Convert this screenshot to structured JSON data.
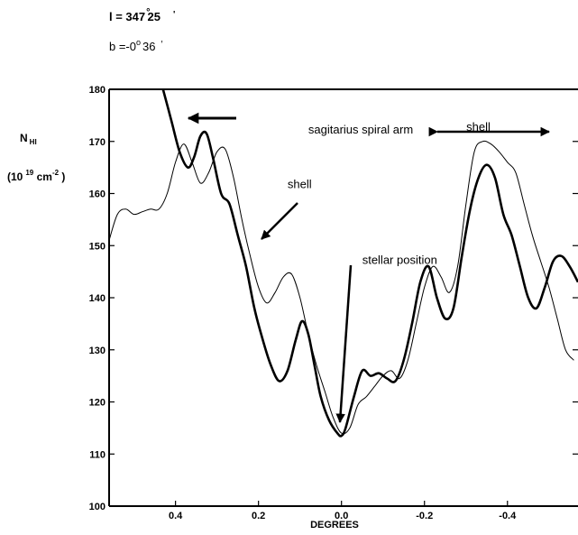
{
  "header": {
    "l_text": "l = 347",
    "l_degree": "°",
    "l_minutes": "25",
    "l_prime": "'",
    "b_text": "b =-0",
    "b_degree": "o",
    "b_minutes": "36",
    "b_prime": "′"
  },
  "chart_data": {
    "type": "line",
    "title": "",
    "xlabel": "DEGREES",
    "ylabel": "N",
    "ylabel_sub": "HI",
    "ylabel_unit_open": "(10",
    "ylabel_unit_exp": "19",
    "ylabel_unit_mid": " cm",
    "ylabel_unit_exp2": "-2",
    "ylabel_unit_close": " )",
    "xlim": [
      0.56,
      -0.57
    ],
    "ylim": [
      100,
      180
    ],
    "x_reversed": true,
    "grid": false,
    "x_ticks": [
      0.4,
      0.2,
      0.0,
      -0.2,
      -0.4
    ],
    "x_tick_labels": [
      "0.4",
      "0.2",
      "0.0",
      "-0.2",
      "-0.4"
    ],
    "y_ticks": [
      100,
      110,
      120,
      130,
      140,
      150,
      160,
      170,
      180
    ],
    "y_tick_labels": [
      "100",
      "110",
      "120",
      "130",
      "140",
      "150",
      "160",
      "170",
      "180"
    ],
    "series": [
      {
        "style": "thick",
        "x": [
          0.43,
          0.41,
          0.39,
          0.37,
          0.355,
          0.34,
          0.325,
          0.31,
          0.29,
          0.27,
          0.25,
          0.23,
          0.21,
          0.19,
          0.17,
          0.15,
          0.13,
          0.11,
          0.095,
          0.08,
          0.065,
          0.05,
          0.03,
          0.01,
          0.0,
          -0.01,
          -0.03,
          -0.05,
          -0.07,
          -0.09,
          -0.11,
          -0.13,
          -0.15,
          -0.17,
          -0.19,
          -0.21,
          -0.23,
          -0.25,
          -0.27,
          -0.29,
          -0.31,
          -0.33,
          -0.35,
          -0.37,
          -0.39,
          -0.41,
          -0.43,
          -0.45,
          -0.47,
          -0.49,
          -0.51,
          -0.53,
          -0.55,
          -0.57
        ],
        "y": [
          180,
          174,
          168,
          165,
          167,
          171,
          171.5,
          167,
          160,
          158,
          152,
          146,
          138,
          132,
          127,
          124,
          126,
          132,
          135.5,
          133,
          127,
          121,
          116.5,
          114,
          113.5,
          115,
          121,
          126,
          125,
          125.5,
          124.5,
          124,
          128,
          135,
          143,
          146,
          140,
          136,
          138,
          148,
          157,
          163,
          165.5,
          163,
          156,
          152,
          146,
          140,
          138,
          142,
          147,
          148,
          146,
          143
        ]
      },
      {
        "style": "thin",
        "x": [
          0.56,
          0.54,
          0.52,
          0.5,
          0.48,
          0.46,
          0.44,
          0.42,
          0.4,
          0.38,
          0.36,
          0.34,
          0.32,
          0.3,
          0.28,
          0.26,
          0.24,
          0.22,
          0.2,
          0.18,
          0.16,
          0.14,
          0.12,
          0.1,
          0.08,
          0.06,
          0.04,
          0.02,
          0.0,
          -0.02,
          -0.04,
          -0.06,
          -0.08,
          -0.1,
          -0.12,
          -0.14,
          -0.16,
          -0.18,
          -0.2,
          -0.22,
          -0.24,
          -0.26,
          -0.28,
          -0.3,
          -0.32,
          -0.34,
          -0.36,
          -0.38,
          -0.4,
          -0.42,
          -0.44,
          -0.46,
          -0.48,
          -0.5,
          -0.52,
          -0.54,
          -0.56
        ],
        "y": [
          151,
          156,
          157,
          156,
          156.5,
          157,
          157,
          160,
          166,
          169.5,
          166,
          162,
          164,
          168,
          168.5,
          163,
          155,
          148,
          142,
          139,
          141,
          144,
          144.5,
          140,
          133,
          127,
          122,
          117,
          114,
          115,
          119.5,
          121,
          123,
          125,
          126,
          124.5,
          128,
          135,
          142,
          146,
          144,
          141,
          146,
          158,
          168,
          170,
          169.5,
          168,
          166,
          164,
          158,
          152,
          147,
          142,
          136,
          130,
          128
        ]
      }
    ],
    "annotations": [
      {
        "text": "sagitarius spiral arm",
        "x": 0.08,
        "y": 171.5
      },
      {
        "text": "shell",
        "x": -0.33,
        "y": 172
      },
      {
        "text": "shell",
        "x": 0.13,
        "y": 161
      },
      {
        "text": "stellar position",
        "x": -0.05,
        "y": 146.5
      }
    ]
  }
}
